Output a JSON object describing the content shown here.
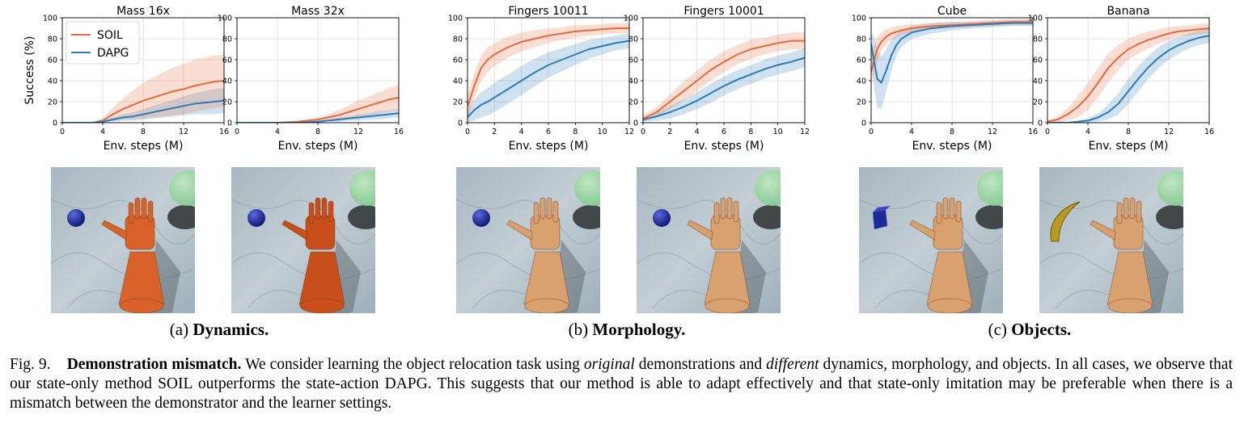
{
  "chart_data": [
    {
      "type": "line",
      "group": "a",
      "title": "Mass 16x",
      "xlabel": "Env. steps (M)",
      "ylabel": "Success (%)",
      "xlim": [
        0,
        16
      ],
      "ylim": [
        0,
        100
      ],
      "xticks": [
        0,
        4,
        8,
        12,
        16
      ],
      "yticks": [
        0,
        20,
        40,
        60,
        80,
        100
      ],
      "grid": true,
      "legend": {
        "position": "top-left",
        "entries": [
          "SOIL",
          "DAPG"
        ]
      },
      "series": [
        {
          "name": "SOIL",
          "color": "#e8693a",
          "x": [
            0,
            2,
            3,
            4,
            5,
            6,
            7,
            8,
            9,
            10,
            11,
            12,
            13,
            14,
            15,
            16
          ],
          "y": [
            0,
            0,
            0,
            2,
            8,
            13,
            17,
            21,
            24,
            27,
            30,
            32,
            35,
            37,
            39,
            40
          ],
          "band": [
            0,
            0,
            0,
            2,
            6,
            10,
            14,
            17,
            19,
            21,
            23,
            24,
            25,
            25,
            25,
            25
          ]
        },
        {
          "name": "DAPG",
          "color": "#2b7bba",
          "x": [
            0,
            2,
            3,
            4,
            5,
            6,
            7,
            8,
            9,
            10,
            11,
            12,
            13,
            14,
            15,
            16
          ],
          "y": [
            0,
            0,
            0,
            1,
            3,
            5,
            6,
            8,
            10,
            12,
            14,
            16,
            18,
            19,
            20,
            21
          ],
          "band": [
            0,
            0,
            0,
            1,
            2,
            3,
            4,
            5,
            6,
            7,
            8,
            9,
            10,
            11,
            12,
            12
          ]
        }
      ]
    },
    {
      "type": "line",
      "group": "a",
      "title": "Mass 32x",
      "xlabel": "Env. steps (M)",
      "ylabel": "",
      "xlim": [
        0,
        16
      ],
      "ylim": [
        0,
        100
      ],
      "xticks": [
        0,
        4,
        8,
        12,
        16
      ],
      "yticks": [
        0,
        20,
        40,
        60,
        80,
        100
      ],
      "grid": true,
      "series": [
        {
          "name": "SOIL",
          "color": "#e8693a",
          "x": [
            0,
            4,
            6,
            8,
            9,
            10,
            11,
            12,
            13,
            14,
            15,
            16
          ],
          "y": [
            0,
            0,
            1,
            3,
            5,
            7,
            10,
            13,
            16,
            19,
            22,
            24
          ],
          "band": [
            0,
            0,
            1,
            2,
            3,
            5,
            6,
            8,
            9,
            10,
            11,
            12
          ]
        },
        {
          "name": "DAPG",
          "color": "#2b7bba",
          "x": [
            0,
            4,
            6,
            8,
            9,
            10,
            11,
            12,
            13,
            14,
            15,
            16
          ],
          "y": [
            0,
            0,
            0,
            1,
            2,
            3,
            4,
            5,
            6,
            7,
            8,
            9
          ],
          "band": [
            0,
            0,
            0,
            1,
            1,
            2,
            2,
            3,
            3,
            4,
            4,
            4
          ]
        }
      ]
    },
    {
      "type": "line",
      "group": "b",
      "title": "Fingers 10011",
      "xlabel": "Env. steps (M)",
      "ylabel": "",
      "xlim": [
        0,
        12
      ],
      "ylim": [
        0,
        100
      ],
      "xticks": [
        0,
        2,
        4,
        6,
        8,
        10,
        12
      ],
      "yticks": [
        0,
        20,
        40,
        60,
        80,
        100
      ],
      "grid": true,
      "series": [
        {
          "name": "SOIL",
          "color": "#e8693a",
          "x": [
            0,
            0.5,
            1,
            1.5,
            2,
            3,
            4,
            5,
            6,
            7,
            8,
            9,
            10,
            11,
            12
          ],
          "y": [
            15,
            35,
            52,
            60,
            65,
            72,
            77,
            80,
            83,
            85,
            87,
            88,
            89,
            90,
            90
          ],
          "band": [
            12,
            12,
            12,
            12,
            11,
            10,
            9,
            8,
            7,
            6,
            6,
            5,
            5,
            5,
            5
          ]
        },
        {
          "name": "DAPG",
          "color": "#2b7bba",
          "x": [
            0,
            0.5,
            1,
            1.5,
            2,
            3,
            4,
            5,
            6,
            7,
            8,
            9,
            10,
            11,
            12
          ],
          "y": [
            5,
            12,
            17,
            20,
            24,
            32,
            40,
            48,
            55,
            60,
            65,
            70,
            73,
            76,
            78
          ],
          "band": [
            8,
            10,
            12,
            13,
            14,
            14,
            14,
            13,
            12,
            11,
            10,
            9,
            8,
            7,
            7
          ]
        }
      ]
    },
    {
      "type": "line",
      "group": "b",
      "title": "Fingers 10001",
      "xlabel": "Env. steps (M)",
      "ylabel": "",
      "xlim": [
        0,
        12
      ],
      "ylim": [
        0,
        100
      ],
      "xticks": [
        0,
        2,
        4,
        6,
        8,
        10,
        12
      ],
      "yticks": [
        0,
        20,
        40,
        60,
        80,
        100
      ],
      "grid": true,
      "series": [
        {
          "name": "SOIL",
          "color": "#e8693a",
          "x": [
            0,
            1,
            2,
            3,
            4,
            5,
            6,
            7,
            8,
            9,
            10,
            11,
            12
          ],
          "y": [
            4,
            10,
            20,
            30,
            40,
            50,
            58,
            65,
            70,
            73,
            76,
            78,
            78
          ],
          "band": [
            3,
            5,
            7,
            9,
            10,
            10,
            10,
            9,
            9,
            8,
            8,
            8,
            8
          ]
        },
        {
          "name": "DAPG",
          "color": "#2b7bba",
          "x": [
            0,
            1,
            2,
            3,
            4,
            5,
            6,
            7,
            8,
            9,
            10,
            11,
            12
          ],
          "y": [
            3,
            6,
            10,
            15,
            21,
            28,
            35,
            41,
            46,
            51,
            55,
            58,
            62
          ],
          "band": [
            2,
            4,
            6,
            7,
            8,
            9,
            9,
            9,
            9,
            9,
            9,
            9,
            9
          ]
        }
      ]
    },
    {
      "type": "line",
      "group": "c",
      "title": "Cube",
      "xlabel": "Env. steps (M)",
      "ylabel": "",
      "xlim": [
        0,
        16
      ],
      "ylim": [
        0,
        100
      ],
      "xticks": [
        0,
        4,
        8,
        12,
        16
      ],
      "yticks": [
        0,
        20,
        40,
        60,
        80,
        100
      ],
      "grid": true,
      "series": [
        {
          "name": "SOIL",
          "color": "#e8693a",
          "x": [
            0,
            0.3,
            0.6,
            1,
            1.5,
            2,
            3,
            4,
            6,
            8,
            10,
            12,
            14,
            16
          ],
          "y": [
            48,
            60,
            70,
            77,
            82,
            85,
            88,
            90,
            92,
            93,
            94,
            95,
            96,
            96
          ],
          "band": [
            15,
            14,
            12,
            9,
            7,
            6,
            5,
            4,
            3,
            3,
            3,
            3,
            3,
            3
          ]
        },
        {
          "name": "DAPG",
          "color": "#2b7bba",
          "x": [
            0,
            0.3,
            0.6,
            1,
            1.5,
            2,
            2.5,
            3,
            4,
            6,
            8,
            10,
            12,
            14,
            16
          ],
          "y": [
            75,
            58,
            42,
            38,
            50,
            64,
            74,
            80,
            86,
            90,
            92,
            93,
            94,
            95,
            95
          ],
          "band": [
            10,
            25,
            28,
            25,
            20,
            15,
            10,
            8,
            6,
            5,
            4,
            3,
            3,
            3,
            3
          ]
        }
      ]
    },
    {
      "type": "line",
      "group": "c",
      "title": "Banana",
      "xlabel": "Env. steps (M)",
      "ylabel": "",
      "xlim": [
        0,
        16
      ],
      "ylim": [
        0,
        100
      ],
      "xticks": [
        0,
        4,
        8,
        12,
        16
      ],
      "yticks": [
        0,
        20,
        40,
        60,
        80,
        100
      ],
      "grid": true,
      "series": [
        {
          "name": "SOIL",
          "color": "#e8693a",
          "x": [
            0,
            1,
            2,
            3,
            4,
            5,
            6,
            7,
            8,
            9,
            10,
            11,
            12,
            13,
            14,
            15,
            16
          ],
          "y": [
            1,
            3,
            8,
            15,
            25,
            38,
            52,
            62,
            70,
            75,
            79,
            82,
            85,
            87,
            88,
            89,
            90
          ],
          "band": [
            1,
            3,
            6,
            10,
            13,
            14,
            14,
            12,
            10,
            9,
            8,
            7,
            6,
            5,
            5,
            5,
            5
          ]
        },
        {
          "name": "DAPG",
          "color": "#2b7bba",
          "x": [
            0,
            2,
            3,
            4,
            5,
            6,
            7,
            8,
            9,
            10,
            11,
            12,
            13,
            14,
            15,
            16
          ],
          "y": [
            0,
            0,
            1,
            2,
            5,
            10,
            18,
            30,
            42,
            53,
            62,
            69,
            74,
            78,
            81,
            83
          ],
          "band": [
            0,
            0,
            1,
            2,
            4,
            7,
            10,
            12,
            12,
            11,
            10,
            9,
            8,
            7,
            7,
            7
          ]
        }
      ]
    }
  ],
  "subcaptions": [
    {
      "tag": "(a)",
      "label": "Dynamics."
    },
    {
      "tag": "(b)",
      "label": "Morphology."
    },
    {
      "tag": "(c)",
      "label": "Objects."
    }
  ],
  "figure_caption": {
    "prefix": "Fig. 9.",
    "bold": "Demonstration mismatch.",
    "t1": " We consider learning the object relocation task using ",
    "i1": "original",
    "t2": " demonstrations and ",
    "i2": "different",
    "t3": " dynamics, morphology, and objects. In all cases, we observe that our state-only method SOIL outperforms the state-action DAPG. This suggests that our method is able to adapt effectively and that state-only imitation may be preferable when there is a mismatch between the demonstrator and the learner settings."
  },
  "renders": [
    {
      "scene": "dynamics",
      "object": "sphere",
      "arm_color": "#d9622b"
    },
    {
      "scene": "dynamics",
      "object": "sphere",
      "arm_color": "#c84e1c"
    },
    {
      "scene": "morphology",
      "object": "sphere",
      "arm_color": "#d9a070"
    },
    {
      "scene": "morphology",
      "object": "sphere",
      "arm_color": "#d9a070"
    },
    {
      "scene": "objects",
      "object": "cube",
      "arm_color": "#d9a070"
    },
    {
      "scene": "objects",
      "object": "banana",
      "arm_color": "#d9a070"
    }
  ]
}
